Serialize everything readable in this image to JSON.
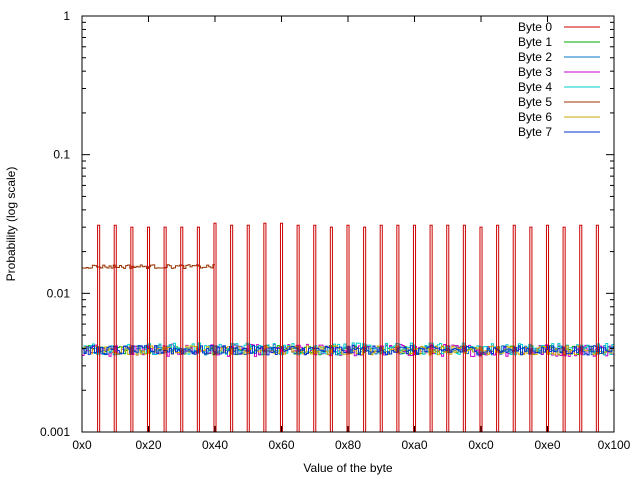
{
  "chart_data": {
    "type": "line",
    "title": "",
    "xlabel": "Value of the byte",
    "ylabel": "Probability (log scale)",
    "y_scale": "log",
    "xlim": [
      0,
      256
    ],
    "ylim": [
      0.001,
      1
    ],
    "grid": false,
    "legend_position": "top-right",
    "x_ticks": [
      {
        "value": 0,
        "label": "0x0"
      },
      {
        "value": 32,
        "label": "0x20"
      },
      {
        "value": 64,
        "label": "0x40"
      },
      {
        "value": 96,
        "label": "0x60"
      },
      {
        "value": 128,
        "label": "0x80"
      },
      {
        "value": 160,
        "label": "0xa0"
      },
      {
        "value": 192,
        "label": "0xc0"
      },
      {
        "value": 224,
        "label": "0xe0"
      },
      {
        "value": 256,
        "label": "0x100"
      }
    ],
    "y_ticks": [
      {
        "value": 0.001,
        "label": "0.001"
      },
      {
        "value": 0.01,
        "label": "0.01"
      },
      {
        "value": 0.1,
        "label": "0.1"
      },
      {
        "value": 1,
        "label": "1"
      }
    ],
    "series": [
      {
        "name": "Byte 0",
        "color": "#cc0000",
        "spikes": {
          "positions": [
            8,
            16,
            24,
            32,
            40,
            48,
            56,
            64,
            72,
            80,
            88,
            96,
            104,
            112,
            120,
            128,
            136,
            144,
            152,
            160,
            168,
            176,
            184,
            192,
            200,
            208,
            216,
            224,
            232,
            240,
            248
          ],
          "values": [
            0.031,
            0.031,
            0.03,
            0.03,
            0.03,
            0.03,
            0.03,
            0.032,
            0.031,
            0.031,
            0.032,
            0.032,
            0.031,
            0.031,
            0.03,
            0.031,
            0.03,
            0.031,
            0.031,
            0.031,
            0.031,
            0.031,
            0.031,
            0.03,
            0.031,
            0.031,
            0.03,
            0.031,
            0.03,
            0.031,
            0.031
          ],
          "baseline": 0.001
        }
      },
      {
        "name": "Byte 1",
        "color": "#00aa00",
        "noise": {
          "mean": 0.0039,
          "spread": 0.0003
        }
      },
      {
        "name": "Byte 2",
        "color": "#0077cc",
        "noise": {
          "mean": 0.0039,
          "spread": 0.0003
        }
      },
      {
        "name": "Byte 3",
        "color": "#cc00cc",
        "noise": {
          "mean": 0.0039,
          "spread": 0.0004
        }
      },
      {
        "name": "Byte 4",
        "color": "#00cccc",
        "noise": {
          "mean": 0.004,
          "spread": 0.0004
        }
      },
      {
        "name": "Byte 5",
        "color": "#993300",
        "noise": {
          "mean": 0.0156,
          "spread": 0.0005,
          "x_range": [
            0,
            64
          ]
        }
      },
      {
        "name": "Byte 6",
        "color": "#ccaa00",
        "noise": {
          "mean": 0.0039,
          "spread": 0.0003
        }
      },
      {
        "name": "Byte 7",
        "color": "#0033cc",
        "noise": {
          "mean": 0.0039,
          "spread": 0.0003
        }
      }
    ]
  }
}
